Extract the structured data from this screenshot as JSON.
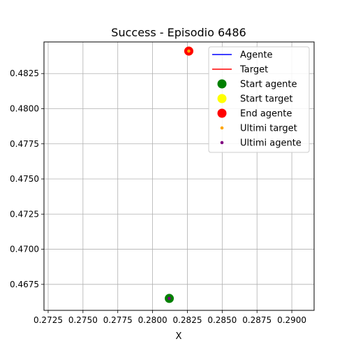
{
  "chart_data": {
    "type": "scatter",
    "title": "Success - Episodio 6486",
    "xlabel": "X",
    "ylabel": "",
    "xlim": [
      0.2722,
      0.2916
    ],
    "ylim": [
      0.46565,
      0.48475
    ],
    "xticks": [
      0.2725,
      0.275,
      0.2775,
      0.28,
      0.2825,
      0.285,
      0.2875,
      0.29
    ],
    "xtick_labels": [
      "0.2725",
      "0.2750",
      "0.2775",
      "0.2800",
      "0.2825",
      "0.2850",
      "0.2875",
      "0.2900"
    ],
    "yticks": [
      0.4675,
      0.47,
      0.4725,
      0.475,
      0.4775,
      0.48,
      0.4825
    ],
    "ytick_labels": [
      "0.4675",
      "0.4700",
      "0.4725",
      "0.4750",
      "0.4775",
      "0.4800",
      "0.4825"
    ],
    "grid": true,
    "legend_position": "top-right",
    "series": [
      {
        "name": "Agente",
        "kind": "line",
        "color": "#0000ff",
        "x": [
          0.2812,
          0.2812
        ],
        "y": [
          0.4665,
          0.4665
        ]
      },
      {
        "name": "Target",
        "kind": "line",
        "color": "#ff0000",
        "x": [
          0.2826,
          0.2826
        ],
        "y": [
          0.4841,
          0.4841
        ]
      },
      {
        "name": "Start agente",
        "kind": "point",
        "marker": "large",
        "color": "#008000",
        "x": [
          0.2812
        ],
        "y": [
          0.4665
        ]
      },
      {
        "name": "Start target",
        "kind": "point",
        "marker": "large",
        "color": "#ffff00",
        "x": [
          0.2826
        ],
        "y": [
          0.4841
        ]
      },
      {
        "name": "End agente",
        "kind": "point",
        "marker": "large",
        "color": "#ff0000",
        "x": [
          0.2826
        ],
        "y": [
          0.4841
        ]
      },
      {
        "name": "Ultimi target",
        "kind": "point",
        "marker": "small",
        "color": "#ffa500",
        "x": [
          0.2826
        ],
        "y": [
          0.4841
        ]
      },
      {
        "name": "Ultimi agente",
        "kind": "point",
        "marker": "small",
        "color": "#800080",
        "x": [
          0.2812
        ],
        "y": [
          0.4665
        ]
      }
    ]
  }
}
